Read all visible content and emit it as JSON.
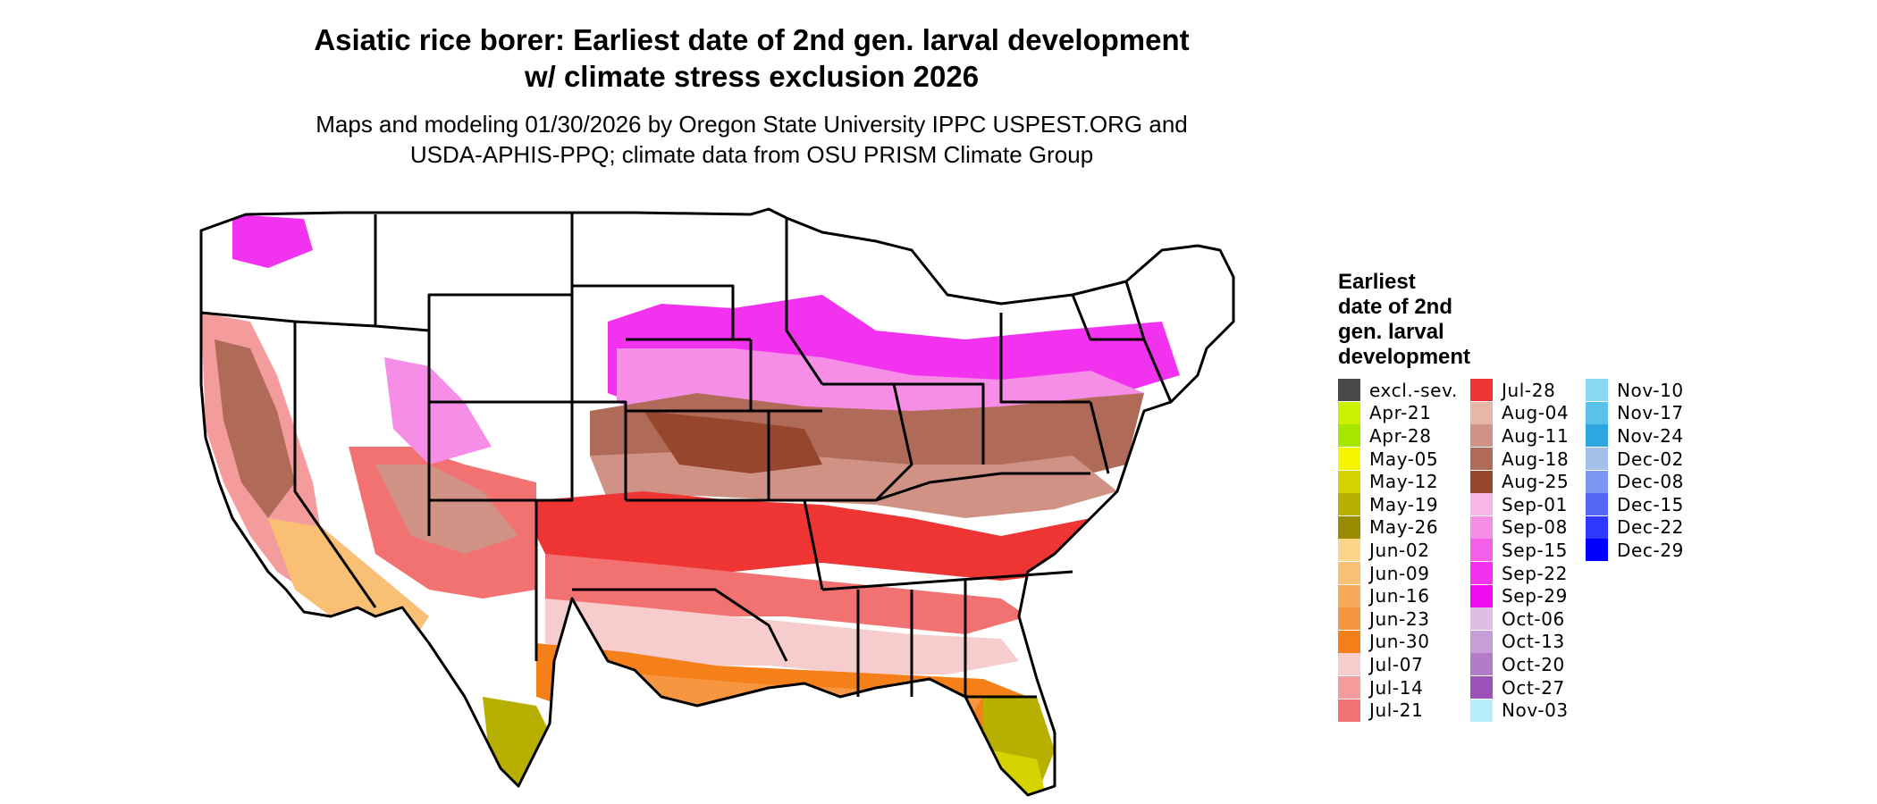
{
  "title_line1": "Asiatic rice borer: Earliest date of 2nd gen. larval development",
  "title_line2": "w/ climate stress exclusion 2026",
  "subtitle_line1": "Maps and modeling 01/30/2026 by Oregon State University IPPC USPEST.ORG and",
  "subtitle_line2": "USDA-APHIS-PPQ; climate data from OSU PRISM Climate Group",
  "legend": {
    "title_lines": [
      "Earliest",
      "date of 2nd",
      "gen. larval",
      "development"
    ],
    "columns": [
      [
        {
          "label": "excl.-sev.",
          "color": "#4a4a4a"
        },
        {
          "label": "Apr-21",
          "color": "#c8f200"
        },
        {
          "label": "Apr-28",
          "color": "#a6e600"
        },
        {
          "label": "May-05",
          "color": "#f5f500"
        },
        {
          "label": "May-12",
          "color": "#d6d400"
        },
        {
          "label": "May-19",
          "color": "#b8b000"
        },
        {
          "label": "May-26",
          "color": "#9a8a00"
        },
        {
          "label": "Jun-02",
          "color": "#fcd48a"
        },
        {
          "label": "Jun-09",
          "color": "#f9bf74"
        },
        {
          "label": "Jun-16",
          "color": "#f7aa5a"
        },
        {
          "label": "Jun-23",
          "color": "#f69640"
        },
        {
          "label": "Jun-30",
          "color": "#f57f18"
        },
        {
          "label": "Jul-07",
          "color": "#f6cccc"
        },
        {
          "label": "Jul-14",
          "color": "#f49c9c"
        },
        {
          "label": "Jul-21",
          "color": "#f27272"
        }
      ],
      [
        {
          "label": "Jul-28",
          "color": "#ef3434"
        },
        {
          "label": "Aug-04",
          "color": "#e6b6a8"
        },
        {
          "label": "Aug-11",
          "color": "#cf9284"
        },
        {
          "label": "Aug-18",
          "color": "#b06a58"
        },
        {
          "label": "Aug-25",
          "color": "#97462e"
        },
        {
          "label": "Sep-01",
          "color": "#f8b6e8"
        },
        {
          "label": "Sep-08",
          "color": "#f68ee8"
        },
        {
          "label": "Sep-15",
          "color": "#f45ee8"
        },
        {
          "label": "Sep-22",
          "color": "#f232ee"
        },
        {
          "label": "Sep-29",
          "color": "#f00cf2"
        },
        {
          "label": "Oct-06",
          "color": "#ddbfe5"
        },
        {
          "label": "Oct-13",
          "color": "#c89ed6"
        },
        {
          "label": "Oct-20",
          "color": "#b47bc8"
        },
        {
          "label": "Oct-27",
          "color": "#9e50bb"
        },
        {
          "label": "Nov-03",
          "color": "#b6ecfb"
        }
      ],
      [
        {
          "label": "Nov-10",
          "color": "#8ad8f2"
        },
        {
          "label": "Nov-17",
          "color": "#5ac2ea"
        },
        {
          "label": "Nov-24",
          "color": "#2ea6e0"
        },
        {
          "label": "Dec-02",
          "color": "#a2c0e8"
        },
        {
          "label": "Dec-08",
          "color": "#7a96f0"
        },
        {
          "label": "Dec-15",
          "color": "#5468f5"
        },
        {
          "label": "Dec-22",
          "color": "#2c38fa"
        },
        {
          "label": "Dec-29",
          "color": "#0000ff"
        }
      ]
    ]
  }
}
